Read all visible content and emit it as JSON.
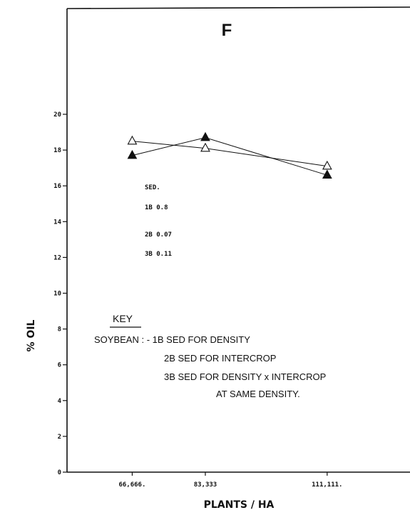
{
  "chart_data": {
    "type": "line",
    "panel_label": "F",
    "xlabel": "PLANTS / HA",
    "ylabel": "% OIL",
    "categories": [
      "66,666.",
      "83,333",
      "111,111."
    ],
    "x": [
      66666,
      83333,
      111111
    ],
    "xlim": [
      51800,
      130000
    ],
    "ylim": [
      0,
      20
    ],
    "y_ticks": [
      0,
      2,
      4,
      6,
      8,
      10,
      12,
      14,
      16,
      18,
      20
    ],
    "y_tick_labels": [
      "0",
      "2",
      "4",
      "6",
      "8",
      "10",
      "12",
      "14",
      "16",
      "18",
      "20"
    ],
    "grid": false,
    "series": [
      {
        "marker": "open-triangle",
        "values": [
          18.5,
          18.1,
          17.1
        ]
      },
      {
        "marker": "filled-triangle",
        "values": [
          17.7,
          18.7,
          16.6
        ]
      }
    ],
    "sed": {
      "heading": "SED.",
      "rows": [
        "1B  0.8",
        "2B  0.07",
        "3B  0.11"
      ]
    },
    "key": {
      "heading": "KEY",
      "lines": [
        "SOYBEAN : - 1B  SED  FOR  DENSITY",
        "2B  SED  FOR  INTERCROP",
        "3B  SED  FOR  DENSITY x INTERCROP",
        "AT SAME DENSITY."
      ]
    },
    "colors": {
      "ink": "#111111",
      "background": "#ffffff"
    }
  }
}
